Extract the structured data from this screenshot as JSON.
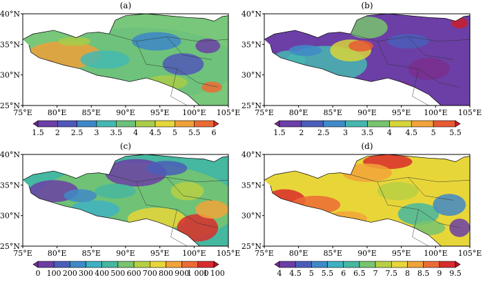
{
  "map": {
    "lat_ticks": [
      "25°N",
      "30°N",
      "35°N",
      "40°N"
    ],
    "lon_ticks": [
      "75°E",
      "80°E",
      "85°E",
      "90°E",
      "95°E",
      "100°E",
      "105°E"
    ],
    "lat_range": [
      25,
      40
    ],
    "lon_range": [
      75,
      105
    ]
  },
  "panels": [
    {
      "title": "(a)",
      "colorbar": {
        "ticks": [
          "1.5",
          "2",
          "2.5",
          "3",
          "3.5",
          "4",
          "4.5",
          "5",
          "5.5",
          "6"
        ],
        "colors": [
          "#6a2a87",
          "#6b3fa6",
          "#5057b9",
          "#3d86c8",
          "#44b8b2",
          "#6cc17b",
          "#a9cc49",
          "#e7d63a",
          "#f0a03a",
          "#ec6b35",
          "#d92d2d"
        ]
      },
      "dominant_colors": [
        "#78c77b",
        "#a9cc49",
        "#44b8b2",
        "#5057b9"
      ]
    },
    {
      "title": "(b)",
      "colorbar": {
        "ticks": [
          "1.5",
          "2",
          "2.5",
          "3",
          "3.5",
          "4",
          "4.5",
          "5",
          "5.5"
        ],
        "colors": [
          "#7a2e8d",
          "#6b3fa6",
          "#4a5eb9",
          "#3f8ac8",
          "#46b7b0",
          "#79c46f",
          "#d7d43a",
          "#f1a33a",
          "#e75a33",
          "#c91f2a"
        ]
      },
      "dominant_colors": [
        "#6b3fa6",
        "#4a5eb9",
        "#79c46f",
        "#46b7b0"
      ]
    },
    {
      "title": "(c)",
      "colorbar": {
        "ticks": [
          "0",
          "100",
          "200",
          "300",
          "400",
          "500",
          "600",
          "700",
          "800",
          "900",
          "1 000",
          "1 100"
        ],
        "colors": [
          "#7a2e8d",
          "#6b3fa6",
          "#4a5eb9",
          "#3f8ac8",
          "#3fb1c2",
          "#46b7a0",
          "#78c46f",
          "#b7d043",
          "#e7d63a",
          "#f1a33a",
          "#ec6b35",
          "#d92d2d",
          "#b5142a"
        ]
      },
      "dominant_colors": [
        "#46b7a0",
        "#78c46f",
        "#6b3fa6",
        "#e7d63a"
      ]
    },
    {
      "title": "(d)",
      "colorbar": {
        "ticks": [
          "4",
          "4.5",
          "5",
          "5.5",
          "6",
          "6.5",
          "7",
          "7.5",
          "8",
          "8.5",
          "9",
          "9.5"
        ],
        "colors": [
          "#7a2e8d",
          "#6b3fa6",
          "#4a5eb9",
          "#3f8ac8",
          "#3fb1c2",
          "#46b7a0",
          "#78c46f",
          "#b7d043",
          "#e7d63a",
          "#f1a33a",
          "#ec6b35",
          "#d92d2d",
          "#b5142a"
        ]
      },
      "dominant_colors": [
        "#e7d63a",
        "#f1a33a",
        "#b7d043",
        "#ec6b35"
      ]
    }
  ]
}
